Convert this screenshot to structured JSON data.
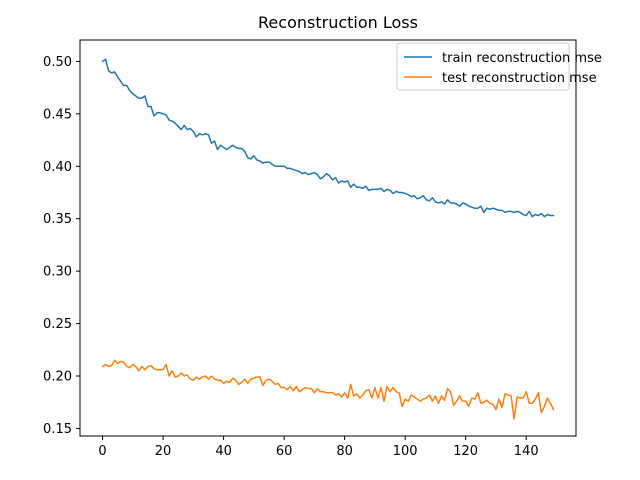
{
  "chart_data": {
    "type": "line",
    "title": "Reconstruction Loss",
    "xlabel": "",
    "ylabel": "",
    "xlim": [
      -7.45,
      156.45
    ],
    "ylim": [
      0.1428,
      0.5204
    ],
    "xticks": [
      0,
      20,
      40,
      60,
      80,
      100,
      120,
      140
    ],
    "yticks": [
      0.15,
      0.2,
      0.25,
      0.3,
      0.35,
      0.4,
      0.45,
      0.5
    ],
    "grid": false,
    "legend_position": "top-right",
    "series": [
      {
        "name": "train reconstruction mse",
        "color": "#1f77b4",
        "x": [
          0,
          1,
          2,
          3,
          4,
          5,
          6,
          7,
          8,
          9,
          10,
          11,
          12,
          13,
          14,
          15,
          16,
          17,
          18,
          19,
          20,
          21,
          22,
          23,
          24,
          25,
          26,
          27,
          28,
          29,
          30,
          31,
          32,
          33,
          34,
          35,
          36,
          37,
          38,
          39,
          40,
          41,
          42,
          43,
          44,
          45,
          46,
          47,
          48,
          49,
          50,
          51,
          52,
          53,
          54,
          55,
          56,
          57,
          58,
          59,
          60,
          61,
          62,
          63,
          64,
          65,
          66,
          67,
          68,
          69,
          70,
          71,
          72,
          73,
          74,
          75,
          76,
          77,
          78,
          79,
          80,
          81,
          82,
          83,
          84,
          85,
          86,
          87,
          88,
          89,
          90,
          91,
          92,
          93,
          94,
          95,
          96,
          97,
          98,
          99,
          100,
          101,
          102,
          103,
          104,
          105,
          106,
          107,
          108,
          109,
          110,
          111,
          112,
          113,
          114,
          115,
          116,
          117,
          118,
          119,
          120,
          121,
          122,
          123,
          124,
          125,
          126,
          127,
          128,
          129,
          130,
          131,
          132,
          133,
          134,
          135,
          136,
          137,
          138,
          139,
          140,
          141,
          142,
          143,
          144,
          145,
          146,
          147,
          148,
          149
        ],
        "values": [
          0.5,
          0.502,
          0.491,
          0.489,
          0.49,
          0.485,
          0.481,
          0.477,
          0.477,
          0.472,
          0.469,
          0.467,
          0.465,
          0.465,
          0.467,
          0.457,
          0.457,
          0.448,
          0.451,
          0.451,
          0.45,
          0.449,
          0.444,
          0.443,
          0.441,
          0.438,
          0.435,
          0.439,
          0.435,
          0.436,
          0.433,
          0.428,
          0.431,
          0.43,
          0.431,
          0.43,
          0.422,
          0.424,
          0.416,
          0.42,
          0.418,
          0.416,
          0.418,
          0.42,
          0.418,
          0.417,
          0.417,
          0.414,
          0.408,
          0.407,
          0.41,
          0.406,
          0.405,
          0.403,
          0.404,
          0.404,
          0.402,
          0.4,
          0.4,
          0.4,
          0.4,
          0.398,
          0.398,
          0.397,
          0.396,
          0.395,
          0.393,
          0.394,
          0.392,
          0.393,
          0.394,
          0.392,
          0.388,
          0.39,
          0.393,
          0.391,
          0.387,
          0.389,
          0.384,
          0.386,
          0.385,
          0.386,
          0.38,
          0.383,
          0.38,
          0.38,
          0.379,
          0.381,
          0.377,
          0.378,
          0.378,
          0.378,
          0.379,
          0.376,
          0.378,
          0.377,
          0.374,
          0.376,
          0.375,
          0.375,
          0.374,
          0.373,
          0.371,
          0.372,
          0.369,
          0.37,
          0.372,
          0.368,
          0.367,
          0.37,
          0.366,
          0.365,
          0.366,
          0.364,
          0.368,
          0.365,
          0.365,
          0.364,
          0.362,
          0.365,
          0.364,
          0.362,
          0.361,
          0.36,
          0.36,
          0.362,
          0.356,
          0.36,
          0.359,
          0.36,
          0.359,
          0.358,
          0.358,
          0.356,
          0.357,
          0.357,
          0.356,
          0.357,
          0.356,
          0.354,
          0.353,
          0.357,
          0.352,
          0.354,
          0.353,
          0.355,
          0.352,
          0.354,
          0.353,
          0.353
        ]
      },
      {
        "name": "test reconstruction mse",
        "color": "#ff7f0e",
        "x": [
          0,
          1,
          2,
          3,
          4,
          5,
          6,
          7,
          8,
          9,
          10,
          11,
          12,
          13,
          14,
          15,
          16,
          17,
          18,
          19,
          20,
          21,
          22,
          23,
          24,
          25,
          26,
          27,
          28,
          29,
          30,
          31,
          32,
          33,
          34,
          35,
          36,
          37,
          38,
          39,
          40,
          41,
          42,
          43,
          44,
          45,
          46,
          47,
          48,
          49,
          50,
          51,
          52,
          53,
          54,
          55,
          56,
          57,
          58,
          59,
          60,
          61,
          62,
          63,
          64,
          65,
          66,
          67,
          68,
          69,
          70,
          71,
          72,
          73,
          74,
          75,
          76,
          77,
          78,
          79,
          80,
          81,
          82,
          83,
          84,
          85,
          86,
          87,
          88,
          89,
          90,
          91,
          92,
          93,
          94,
          95,
          96,
          97,
          98,
          99,
          100,
          101,
          102,
          103,
          104,
          105,
          106,
          107,
          108,
          109,
          110,
          111,
          112,
          113,
          114,
          115,
          116,
          117,
          118,
          119,
          120,
          121,
          122,
          123,
          124,
          125,
          126,
          127,
          128,
          129,
          130,
          131,
          132,
          133,
          134,
          135,
          136,
          137,
          138,
          139,
          140,
          141,
          142,
          143,
          144,
          145,
          146,
          147,
          148,
          149
        ],
        "values": [
          0.209,
          0.211,
          0.209,
          0.21,
          0.215,
          0.212,
          0.214,
          0.213,
          0.209,
          0.208,
          0.211,
          0.209,
          0.205,
          0.209,
          0.206,
          0.209,
          0.21,
          0.207,
          0.206,
          0.206,
          0.206,
          0.211,
          0.2,
          0.205,
          0.199,
          0.2,
          0.203,
          0.2,
          0.201,
          0.197,
          0.196,
          0.199,
          0.197,
          0.199,
          0.2,
          0.197,
          0.2,
          0.197,
          0.196,
          0.196,
          0.193,
          0.195,
          0.194,
          0.198,
          0.196,
          0.192,
          0.194,
          0.197,
          0.193,
          0.197,
          0.198,
          0.199,
          0.199,
          0.191,
          0.196,
          0.197,
          0.195,
          0.192,
          0.193,
          0.189,
          0.189,
          0.187,
          0.19,
          0.186,
          0.19,
          0.185,
          0.187,
          0.189,
          0.188,
          0.188,
          0.184,
          0.188,
          0.185,
          0.185,
          0.184,
          0.184,
          0.184,
          0.182,
          0.183,
          0.18,
          0.184,
          0.179,
          0.192,
          0.181,
          0.183,
          0.179,
          0.182,
          0.186,
          0.187,
          0.179,
          0.189,
          0.179,
          0.189,
          0.176,
          0.19,
          0.185,
          0.189,
          0.185,
          0.184,
          0.171,
          0.178,
          0.176,
          0.182,
          0.18,
          0.178,
          0.176,
          0.178,
          0.179,
          0.182,
          0.176,
          0.181,
          0.174,
          0.181,
          0.177,
          0.188,
          0.185,
          0.172,
          0.176,
          0.181,
          0.176,
          0.176,
          0.171,
          0.179,
          0.178,
          0.184,
          0.174,
          0.175,
          0.177,
          0.174,
          0.173,
          0.168,
          0.178,
          0.17,
          0.183,
          0.182,
          0.181,
          0.159,
          0.18,
          0.179,
          0.179,
          0.185,
          0.174,
          0.174,
          0.178,
          0.184,
          0.165,
          0.171,
          0.179,
          0.174,
          0.168
        ]
      }
    ]
  }
}
